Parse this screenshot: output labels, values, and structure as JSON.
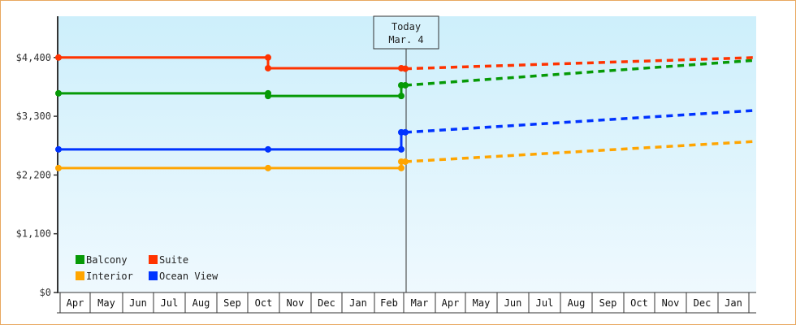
{
  "chart_data": {
    "type": "line",
    "title": "",
    "xlabel": "",
    "ylabel": "",
    "ylim": [
      0,
      5150
    ],
    "grid": false,
    "legend_position": "lower-left inside",
    "y_ticks": [
      {
        "value": 0,
        "label": "$0"
      },
      {
        "value": 1100,
        "label": "$1,100"
      },
      {
        "value": 2200,
        "label": "$2,200"
      },
      {
        "value": 3300,
        "label": "$3,300"
      },
      {
        "value": 4400,
        "label": "$4,400"
      }
    ],
    "x_months": [
      "Apr",
      "May",
      "Jun",
      "Jul",
      "Aug",
      "Sep",
      "Oct",
      "Nov",
      "Dec",
      "Jan",
      "Feb",
      "Mar",
      "Apr",
      "May",
      "Jun",
      "Jul",
      "Aug",
      "Sep",
      "Oct",
      "Nov",
      "Dec",
      "Jan"
    ],
    "today_marker": {
      "line1": "Today",
      "line2": "Mar. 4"
    },
    "series": [
      {
        "name": "Balcony",
        "color": "#069a06",
        "historical": [
          {
            "x": "Apr 1",
            "y": 3730
          },
          {
            "x": "Oct 15",
            "y": 3730
          },
          {
            "x": "Oct 15",
            "y": 3680
          },
          {
            "x": "Mar 1",
            "y": 3680
          },
          {
            "x": "Mar 1",
            "y": 3880
          },
          {
            "x": "Mar 4",
            "y": 3880
          }
        ],
        "forecast": [
          {
            "x": "Mar 4",
            "y": 3880
          },
          {
            "x": "Jan end",
            "y": 4350
          }
        ]
      },
      {
        "name": "Suite",
        "color": "#ff3300",
        "historical": [
          {
            "x": "Apr 1",
            "y": 4400
          },
          {
            "x": "Oct 15",
            "y": 4400
          },
          {
            "x": "Oct 15",
            "y": 4200
          },
          {
            "x": "Mar 1",
            "y": 4200
          },
          {
            "x": "Mar 4",
            "y": 4190
          }
        ],
        "forecast": [
          {
            "x": "Mar 4",
            "y": 4190
          },
          {
            "x": "Jan end",
            "y": 4400
          }
        ]
      },
      {
        "name": "Interior",
        "color": "#ffa500",
        "historical": [
          {
            "x": "Apr 1",
            "y": 2330
          },
          {
            "x": "Oct 15",
            "y": 2330
          },
          {
            "x": "Mar 1",
            "y": 2330
          },
          {
            "x": "Mar 1",
            "y": 2450
          },
          {
            "x": "Mar 4",
            "y": 2450
          }
        ],
        "forecast": [
          {
            "x": "Mar 4",
            "y": 2450
          },
          {
            "x": "Jan end",
            "y": 2830
          }
        ]
      },
      {
        "name": "Ocean View",
        "color": "#0033ff",
        "historical": [
          {
            "x": "Apr 1",
            "y": 2680
          },
          {
            "x": "Oct 15",
            "y": 2680
          },
          {
            "x": "Mar 1",
            "y": 2680
          },
          {
            "x": "Mar 1",
            "y": 3000
          },
          {
            "x": "Mar 4",
            "y": 3000
          }
        ],
        "forecast": [
          {
            "x": "Mar 4",
            "y": 3000
          },
          {
            "x": "Jan end",
            "y": 3410
          }
        ]
      }
    ],
    "legend": [
      {
        "label": "Balcony",
        "color": "#069a06"
      },
      {
        "label": "Suite",
        "color": "#ff3300"
      },
      {
        "label": "Interior",
        "color": "#ffa500"
      },
      {
        "label": "Ocean View",
        "color": "#0033ff"
      }
    ]
  },
  "colors": {
    "frame_border": "#e8a860",
    "plot_bg_top": "#cdeffb",
    "plot_bg_bottom": "#eef9fe",
    "axis": "#333333"
  }
}
